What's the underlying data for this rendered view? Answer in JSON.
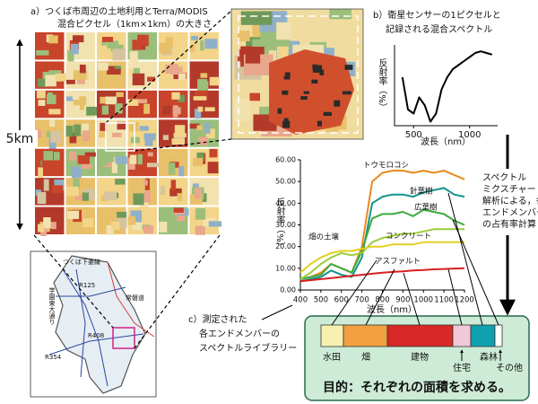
{
  "panel_a": {
    "title_lines": [
      "a）つくば市周辺の土地利用とTerra/MODIS",
      "混合ピクセル（1km×1km）の大きさ"
    ],
    "scale_label": "5km",
    "map_labels": [
      "つくば下妻線",
      "R125",
      "常磐道",
      "学園東大通り",
      "R408",
      "R354"
    ]
  },
  "panel_b": {
    "title_lines": [
      "b）衛星センサーの1ピクセルと",
      "記録される混合スペクトル"
    ],
    "chart": {
      "type": "line",
      "ylabel": "反射率（%）",
      "xlabel": "波長（nm）",
      "x": [
        400,
        450,
        500,
        550,
        600,
        650,
        700,
        750,
        800,
        850,
        900,
        950,
        1000,
        1050,
        1100,
        1150,
        1200
      ],
      "values": [
        60,
        20,
        15,
        35,
        25,
        5,
        15,
        45,
        60,
        70,
        75,
        80,
        85,
        90,
        92,
        90,
        88
      ],
      "color": "#000000",
      "xlim": [
        330,
        1250
      ],
      "ylim": [
        0,
        100
      ],
      "xticks": [
        500,
        1000
      ]
    }
  },
  "panel_c": {
    "title_lines": [
      "c）測定された",
      "各エンドメンバーの",
      "スペクトルライブラリー"
    ],
    "chart": {
      "type": "line",
      "ylabel": "反射率（%）",
      "xlabel": "波長（nm）",
      "x": [
        400,
        450,
        500,
        550,
        600,
        650,
        700,
        750,
        800,
        850,
        900,
        950,
        1000,
        1050,
        1100,
        1150,
        1200
      ],
      "series": [
        {
          "name": "トウモロコシ",
          "color": "#e88a1c",
          "values": [
            5,
            6,
            8,
            12,
            10,
            8,
            20,
            50,
            54,
            55,
            55,
            54,
            55,
            54,
            55,
            53,
            51
          ]
        },
        {
          "name": "針葉樹",
          "color": "#13938f",
          "values": [
            4,
            5,
            6,
            9,
            7,
            6,
            15,
            40,
            43,
            44,
            44,
            43,
            45,
            46,
            47,
            44,
            43
          ]
        },
        {
          "name": "広葉樹",
          "color": "#3daa3d",
          "values": [
            5,
            6,
            7,
            12,
            10,
            8,
            18,
            33,
            35,
            35,
            36,
            34,
            37,
            36,
            35,
            32,
            30
          ]
        },
        {
          "name": "畑の土壌",
          "color": "#9ccc3c",
          "values": [
            5,
            8,
            12,
            15,
            17,
            16,
            17,
            22,
            24,
            25,
            26,
            26,
            27,
            28,
            28,
            28,
            28
          ]
        },
        {
          "name": "コンクリート",
          "color": "#e0d020",
          "values": [
            8,
            12,
            15,
            17,
            18,
            18,
            19,
            20,
            20,
            21,
            21,
            21,
            22,
            22,
            22,
            22,
            22
          ]
        },
        {
          "name": "アスファルト",
          "color": "#d82020",
          "values": [
            4,
            4.5,
            5,
            5.5,
            6,
            6.5,
            7,
            7.5,
            8,
            8.3,
            8.6,
            9,
            9.2,
            9.5,
            9.7,
            9.9,
            10
          ]
        }
      ],
      "xlim": [
        400,
        1200
      ],
      "ylim": [
        0,
        60
      ],
      "xticks": [
        400,
        500,
        600,
        700,
        800,
        900,
        1000,
        1100,
        1200
      ],
      "yticks": [
        {
          "value": 0,
          "label": "0.00"
        },
        {
          "value": 10,
          "label": "10.00"
        },
        {
          "value": 20,
          "label": "20.00"
        },
        {
          "value": 30,
          "label": "30.00"
        },
        {
          "value": 40,
          "label": "40.00"
        },
        {
          "value": 50,
          "label": "50.00"
        },
        {
          "value": 60,
          "label": "60.00"
        }
      ]
    }
  },
  "analysis_note": [
    "スペクトル",
    "ミクスチャー",
    "解析による，各",
    "エンドメンバー",
    "の占有率計算"
  ],
  "result": {
    "segments": [
      "水田",
      "畑",
      "建物",
      "住宅",
      "森林",
      "その他"
    ],
    "goal": "目的：それぞれの面積を求める。"
  }
}
